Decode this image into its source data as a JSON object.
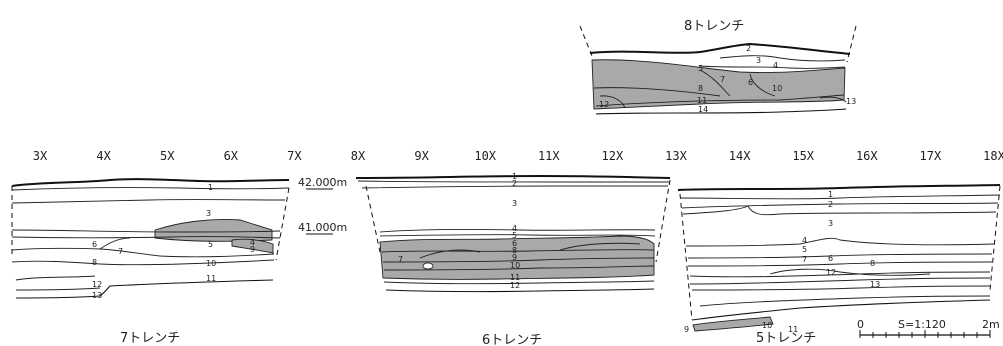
{
  "grid_labels": [
    "3X",
    "4X",
    "5X",
    "6X",
    "7X",
    "8X",
    "9X",
    "10X",
    "11X",
    "12X",
    "13X",
    "14X",
    "15X",
    "16X",
    "17X",
    "18X"
  ],
  "elevations": {
    "upper": "42.000m",
    "lower": "41.000m"
  },
  "trenches": {
    "t8": {
      "title": "8トレンチ",
      "layers": [
        "2",
        "3",
        "4",
        "5",
        "6",
        "7",
        "8",
        "10",
        "11",
        "12",
        "13",
        "14"
      ]
    },
    "t7": {
      "title": "7トレンチ",
      "layers": [
        "1",
        "3",
        "4",
        "5",
        "6",
        "7",
        "8",
        "9",
        "10",
        "11",
        "12",
        "13"
      ]
    },
    "t6": {
      "title": "6トレンチ",
      "layers": [
        "1",
        "2",
        "3",
        "4",
        "5",
        "6",
        "7",
        "8",
        "9",
        "10",
        "11",
        "12"
      ]
    },
    "t5": {
      "title": "5トレンチ",
      "layers": [
        "1",
        "2",
        "3",
        "4",
        "5",
        "6",
        "7",
        "8",
        "9",
        "10",
        "11",
        "12",
        "13"
      ]
    }
  },
  "scale": {
    "start": "0",
    "ratio": "S=1:120",
    "end": "2m"
  },
  "colors": {
    "deposit_fill": "#a9a9a9",
    "line": "#111111"
  }
}
